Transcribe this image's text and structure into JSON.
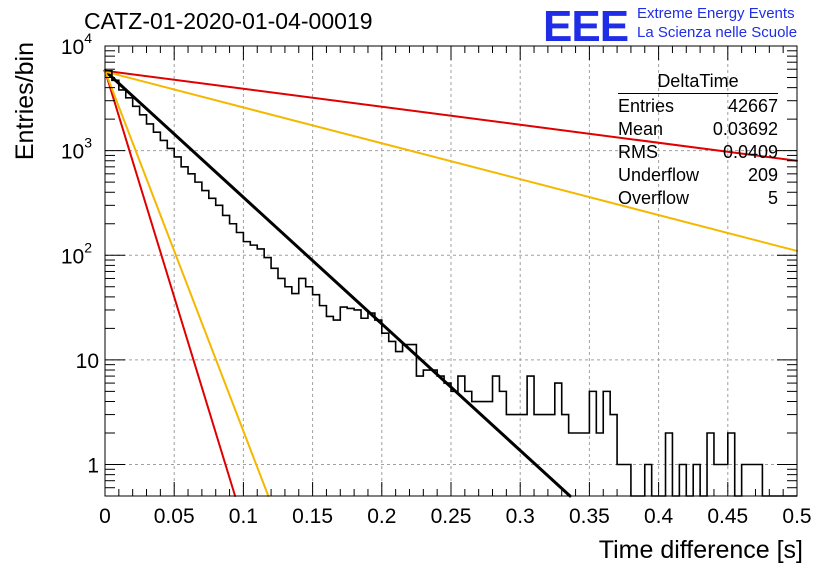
{
  "header": {
    "title": "CATZ-01-2020-01-04-00019",
    "logo_mark": "EEE",
    "logo_line1": "Extreme Energy Events",
    "logo_line2": "La Scienza nelle Scuole"
  },
  "stats": {
    "title": "DeltaTime",
    "rows": [
      {
        "label": "Entries",
        "value": "42667"
      },
      {
        "label": "Mean",
        "value": "0.03692"
      },
      {
        "label": "RMS",
        "value": "0.0409"
      },
      {
        "label": "Underflow",
        "value": "209"
      },
      {
        "label": "Overflow",
        "value": "5"
      }
    ]
  },
  "colors": {
    "histogram": "#000000",
    "fit": "#000000",
    "red": "#e00000",
    "orange": "#f5b800",
    "grid": "#a0a0a0",
    "logo": "#1f2ee6"
  },
  "chart_data": {
    "type": "histogram",
    "title": "CATZ-01-2020-01-04-00019",
    "xlabel": "Time difference [s]",
    "ylabel": "Entries/bin",
    "xlim": [
      0,
      0.5
    ],
    "ylim": [
      0.5,
      10000
    ],
    "y_scale": "log",
    "grid": true,
    "x_ticks": [
      0,
      0.05,
      0.1,
      0.15,
      0.2,
      0.25,
      0.3,
      0.35,
      0.4,
      0.45,
      0.5
    ],
    "x_tick_labels": [
      "0",
      "0.05",
      "0.1",
      "0.15",
      "0.2",
      "0.25",
      "0.3",
      "0.35",
      "0.4",
      "0.45",
      "0.5"
    ],
    "y_ticks": [
      1,
      10,
      100,
      1000,
      10000
    ],
    "y_tick_labels": [
      "1",
      "10",
      "10^2",
      "10^3",
      "10^4"
    ],
    "bin_width": 0.005,
    "histogram": [
      5800,
      4700,
      3800,
      3200,
      2650,
      2200,
      1800,
      1500,
      1250,
      1050,
      870,
      700,
      600,
      500,
      415,
      350,
      300,
      240,
      200,
      165,
      135,
      125,
      115,
      95,
      75,
      60,
      50,
      43,
      60,
      50,
      42,
      33,
      26,
      24,
      32,
      31,
      30,
      25,
      28,
      24,
      18,
      15,
      12,
      14,
      14,
      7,
      8,
      8,
      7,
      6,
      5,
      7,
      5,
      4,
      4,
      4,
      7,
      5,
      3,
      3,
      3,
      7,
      3,
      3,
      3,
      6,
      3,
      2,
      2,
      2,
      5,
      2,
      5,
      3,
      1,
      1,
      0,
      0,
      1,
      0,
      0,
      2,
      0,
      1,
      0,
      1,
      0,
      2,
      1,
      1,
      2,
      0,
      1,
      1,
      1,
      0,
      0,
      0,
      0,
      0
    ],
    "series": [
      {
        "kind": "fit",
        "color": "#000000",
        "x": [
          0,
          0.336
        ],
        "y": [
          5800,
          0.5
        ]
      },
      {
        "kind": "line",
        "color": "#e00000",
        "x": [
          0,
          0.5
        ],
        "y": [
          5800,
          800
        ]
      },
      {
        "kind": "line",
        "color": "#f5b800",
        "x": [
          0,
          0.5
        ],
        "y": [
          5700,
          110
        ]
      },
      {
        "kind": "line",
        "color": "#e00000",
        "x": [
          0,
          0.094
        ],
        "y": [
          5800,
          0.5
        ]
      },
      {
        "kind": "line",
        "color": "#f5b800",
        "x": [
          0,
          0.118
        ],
        "y": [
          5800,
          0.5
        ]
      }
    ]
  }
}
